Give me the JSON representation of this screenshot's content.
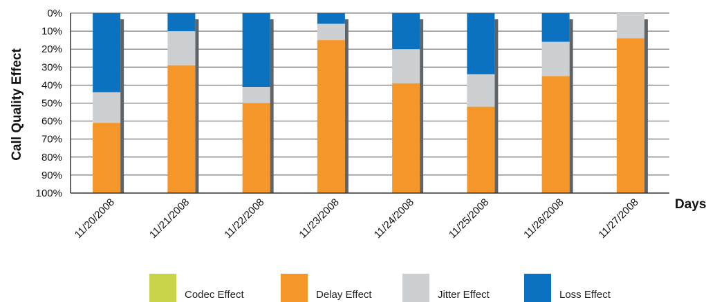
{
  "chart_data": {
    "type": "bar",
    "stacked": true,
    "orientation": "vertical",
    "inverted_y": true,
    "ylabel": "Call Quality Effect",
    "xlabel": "Days",
    "ylim": [
      0,
      100
    ],
    "y_ticks": [
      "0%",
      "10%",
      "20%",
      "30%",
      "40%",
      "50%",
      "60%",
      "70%",
      "80%",
      "90%",
      "100%"
    ],
    "grid": true,
    "legend_placement": "bottom",
    "categories": [
      "11/20/2008",
      "11/21/2008",
      "11/22/2008",
      "11/23/2008",
      "11/24/2008",
      "11/25/2008",
      "11/26/2008",
      "11/27/2008"
    ],
    "series": [
      {
        "name": "Loss Effect",
        "color": "#0a72c0",
        "values": [
          44,
          10,
          41,
          6,
          20,
          34,
          16,
          0
        ]
      },
      {
        "name": "Jitter Effect",
        "color": "#cdd0d3",
        "values": [
          17,
          19,
          9,
          9,
          19,
          18,
          19,
          14
        ]
      },
      {
        "name": "Delay Effect",
        "color": "#f5962b",
        "values": [
          39,
          71,
          50,
          85,
          61,
          48,
          65,
          86
        ]
      },
      {
        "name": "Codec Effect",
        "color": "#c8d44a",
        "values": [
          0,
          0,
          0,
          0,
          0,
          0,
          0,
          0
        ]
      }
    ],
    "legend_order": [
      "Codec Effect",
      "Delay Effect",
      "Jitter Effect",
      "Loss Effect"
    ]
  }
}
